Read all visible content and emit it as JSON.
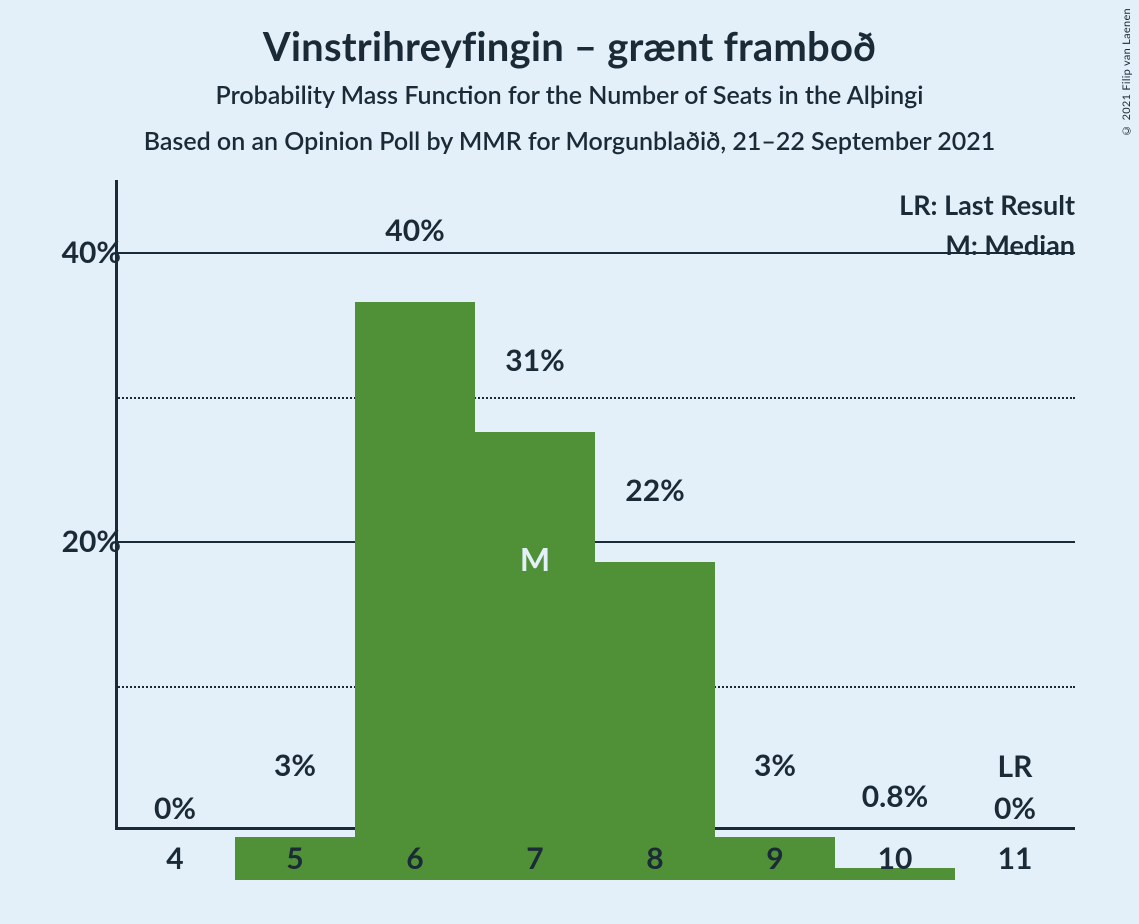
{
  "title": "Vinstrihreyfingin – grænt framboð",
  "subtitle": "Probability Mass Function for the Number of Seats in the Alþingi",
  "subtitle2": "Based on an Opinion Poll by MMR for Morgunblaðið, 21–22 September 2021",
  "copyright": "© 2021 Filip van Laenen",
  "legend_lr": "LR: Last Result",
  "legend_m": "M: Median",
  "chart": {
    "type": "bar",
    "background_color": "#e3f0fa",
    "bar_color": "#509137",
    "text_color": "#1a2a36",
    "grid_solid_color": "#1a2a36",
    "grid_dotted_color": "#1a2a36",
    "title_fontsize": 40,
    "subtitle_fontsize": 25,
    "axis_label_fontsize": 30,
    "value_label_fontsize": 30,
    "ylim_max_pct": 45,
    "y_major_ticks": [
      20,
      40
    ],
    "y_minor_ticks": [
      10,
      30
    ],
    "bar_width_ratio": 1.0,
    "categories": [
      "4",
      "5",
      "6",
      "7",
      "8",
      "9",
      "10",
      "11"
    ],
    "values_pct": [
      0,
      3,
      40,
      31,
      22,
      3,
      0.8,
      0
    ],
    "value_labels": [
      "0%",
      "3%",
      "40%",
      "31%",
      "22%",
      "3%",
      "0.8%",
      "0%"
    ],
    "annotations": {
      "median_index": 3,
      "median_label": "M",
      "lr_index": 7,
      "lr_label": "LR"
    }
  }
}
